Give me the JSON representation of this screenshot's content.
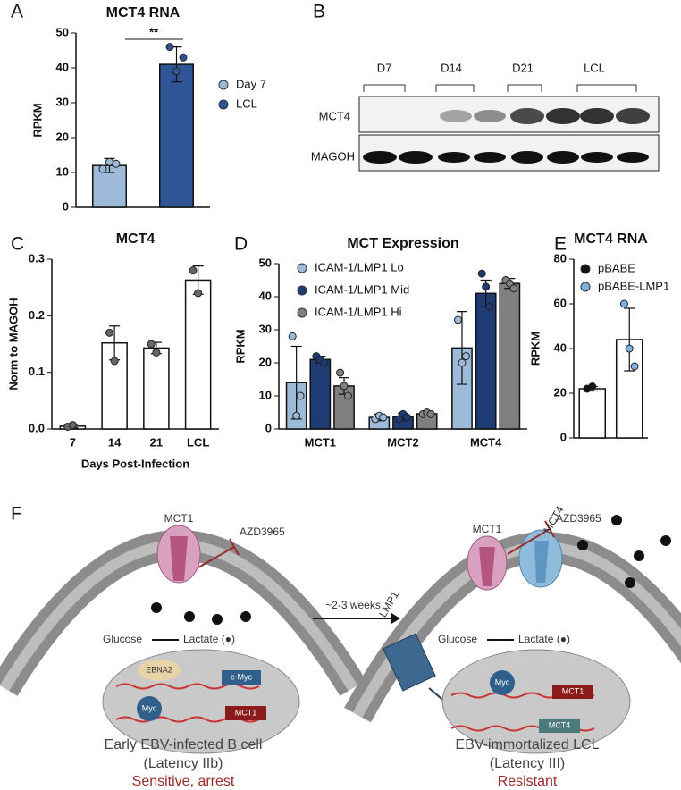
{
  "chart_data": [
    {
      "type": "bar",
      "panel": "A",
      "title": "MCT4 RNA",
      "ylabel": "RPKM",
      "annotation": "**",
      "series": [
        {
          "name": "Day 7",
          "color": "#9dbad9",
          "values": [
            12
          ],
          "errors": [
            2
          ],
          "points": [
            [
              11,
              13,
              12.5
            ]
          ]
        },
        {
          "name": "LCL",
          "color": "#2f5597",
          "values": [
            41
          ],
          "errors": [
            5
          ],
          "points": [
            [
              46,
              39,
              43
            ]
          ]
        }
      ],
      "ylim": [
        0,
        50
      ],
      "yticks": [
        0,
        10,
        20,
        30,
        40,
        50
      ]
    },
    {
      "type": "bar",
      "panel": "C",
      "title": "MCT4",
      "ylabel": "Norm to MAGOH",
      "xlabel": "Days Post-Infection",
      "categories": [
        "7",
        "14",
        "21",
        "LCL"
      ],
      "values": [
        0.005,
        0.152,
        0.143,
        0.263
      ],
      "errors": [
        0.003,
        0.03,
        0.01,
        0.025
      ],
      "points": [
        [
          0.004,
          0.007
        ],
        [
          0.17,
          0.12
        ],
        [
          0.15,
          0.135
        ],
        [
          0.28,
          0.24
        ]
      ],
      "color": "#ffffff",
      "point_color": "#666666",
      "ylim": [
        0,
        0.3
      ],
      "yticks": [
        {
          "value": 0,
          "label": "0.0"
        },
        0.1,
        0.2,
        0.3
      ]
    },
    {
      "type": "bar",
      "panel": "D",
      "title": "MCT Expression",
      "ylabel": "RPKM",
      "categories": [
        "MCT1",
        "MCT2",
        "MCT4"
      ],
      "series": [
        {
          "name": "ICAM-1/LMP1 Lo",
          "color": "#9dbad9",
          "values": [
            14,
            3.5,
            24.5
          ],
          "errors": [
            11,
            1,
            11
          ],
          "points": [
            [
              28,
              4,
              10
            ],
            [
              3,
              4,
              3.5
            ],
            [
              33,
              20,
              22
            ]
          ]
        },
        {
          "name": "ICAM-1/LMP1 Mid",
          "color": "#1f3b73",
          "values": [
            21,
            3.7,
            41
          ],
          "errors": [
            1,
            1,
            4
          ],
          "points": [
            [
              22,
              21,
              20
            ],
            [
              3,
              4.5,
              3.5
            ],
            [
              47,
              43,
              37
            ]
          ]
        },
        {
          "name": "ICAM-1/LMP1 Hi",
          "color": "#808080",
          "values": [
            13,
            4.6,
            44
          ],
          "errors": [
            2.5,
            0.5,
            1.5
          ],
          "points": [
            [
              17,
              13,
              10
            ],
            [
              4.5,
              5,
              4.5
            ],
            [
              45,
              44,
              42.5
            ]
          ]
        }
      ],
      "ylim": [
        0,
        50
      ],
      "yticks": [
        0,
        10,
        20,
        30,
        40,
        50
      ]
    },
    {
      "type": "bar",
      "panel": "E",
      "title": "MCT4 RNA",
      "ylabel": "RPKM",
      "bar_fill": "#ffffff",
      "series": [
        {
          "name": "pBABE",
          "color": "#111111",
          "values": [
            22
          ],
          "errors": [
            1
          ],
          "points": [
            [
              22,
              23
            ]
          ]
        },
        {
          "name": "pBABE-LMP1",
          "color": "#7fb0dc",
          "values": [
            44
          ],
          "errors": [
            14
          ],
          "points": [
            [
              60,
              40,
              32
            ]
          ]
        }
      ],
      "ylim": [
        0,
        80
      ],
      "yticks": [
        0,
        20,
        40,
        60,
        80
      ]
    }
  ],
  "blot": {
    "panel": "B",
    "lanes": [
      "D7",
      "D14",
      "D21",
      "LCL"
    ],
    "rows": [
      "MCT4",
      "MAGOH"
    ]
  },
  "diagram": {
    "panel": "F",
    "drug_left": "AZD3965",
    "drug_right": "AZD3965",
    "mct1_left": "MCT1",
    "mct1_right": "MCT1",
    "mct4": "MCT4",
    "glucose_left": "Glucose",
    "lactate_left": "Lactate (●)",
    "glucose_right": "Glucose",
    "lactate_right": "Lactate (●)",
    "weeks": "~2-3 weeks",
    "lmp1": "LMP1",
    "ebna2": "EBNA2",
    "cmyc": "c-Myc",
    "myc_left": "Myc",
    "gene_mct1_left": "MCT1",
    "myc_right": "Myc",
    "gene_mct1_right": "MCT1",
    "gene_mct4": "MCT4",
    "left_title": "Early EBV-infected B cell",
    "left_latency": "(Latency IIb)",
    "left_outcome": "Sensitive, arrest",
    "right_title": "EBV-immortalized LCL",
    "right_latency": "(Latency III)",
    "right_outcome": "Resistant"
  }
}
